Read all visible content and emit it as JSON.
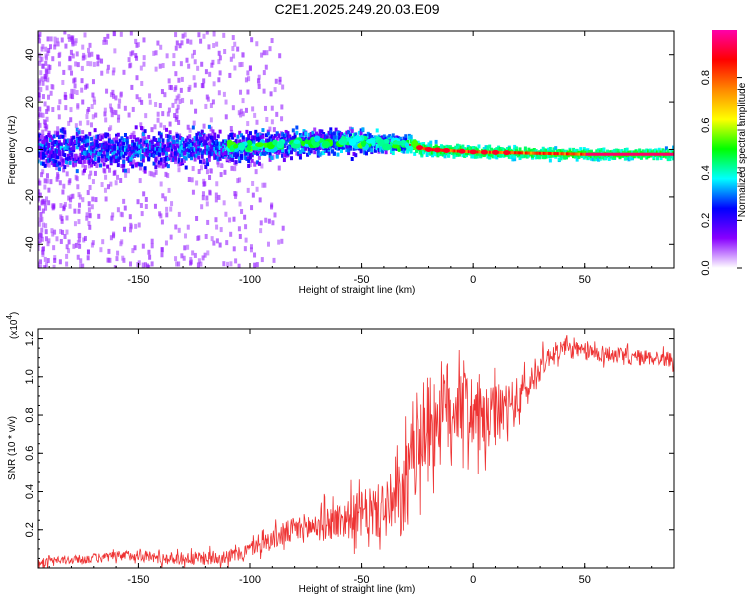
{
  "title": "C2E1.2025.249.20.03.E09",
  "chart_data": [
    {
      "type": "heatmap",
      "xlabel": "Height of straight line (km)",
      "ylabel": "Frequency (Hz)",
      "xlim": [
        -195,
        90
      ],
      "ylim": [
        -50,
        50
      ],
      "xticks": [
        -150,
        -100,
        -50,
        0,
        50
      ],
      "yticks": [
        -40,
        -20,
        0,
        20,
        40
      ],
      "xtick_labels": [
        "-150",
        "-100",
        "-50",
        "0",
        "50"
      ],
      "ytick_labels": [
        "-40",
        "-20",
        "0",
        "20",
        "40"
      ],
      "description_series": {
        "center_frequency_hz": [
          {
            "x": -190,
            "f": 0
          },
          {
            "x": -150,
            "f": 0
          },
          {
            "x": -100,
            "f": 1
          },
          {
            "x": -75,
            "f": 3
          },
          {
            "x": -50,
            "f": 3
          },
          {
            "x": -30,
            "f": 2
          },
          {
            "x": -20,
            "f": 0
          },
          {
            "x": 0,
            "f": -1
          },
          {
            "x": 50,
            "f": -2
          },
          {
            "x": 90,
            "f": -2
          }
        ],
        "band_halfwidth_hz": [
          {
            "x": -190,
            "w": 10
          },
          {
            "x": -100,
            "w": 8
          },
          {
            "x": -50,
            "w": 6
          },
          {
            "x": -30,
            "w": 4
          },
          {
            "x": 0,
            "w": 3
          },
          {
            "x": 90,
            "w": 2.5
          }
        ]
      },
      "colorbar": {
        "label": "Normalized spectral amplitude",
        "range": [
          0,
          1
        ],
        "ticks": [
          0.0,
          0.2,
          0.4,
          0.6,
          0.8
        ],
        "tick_labels": [
          "0.0",
          "0.2",
          "0.4",
          "0.6",
          "0.8"
        ],
        "colormap": [
          "#ffffff",
          "#8800ff",
          "#0000ff",
          "#00ffff",
          "#00ff00",
          "#ffff00",
          "#ff8800",
          "#ff0000",
          "#ff00aa"
        ]
      }
    },
    {
      "type": "line",
      "xlabel": "Height of straight line (km)",
      "ylabel": "SNR (10 * v/v)",
      "scale_label": "(x10",
      "scale_exponent": "4",
      "scale_close": ")",
      "xlim": [
        -195,
        90
      ],
      "ylim": [
        0,
        1.25
      ],
      "xticks": [
        -150,
        -100,
        -50,
        0,
        50
      ],
      "xtick_labels": [
        "-150",
        "-100",
        "-50",
        "0",
        "50"
      ],
      "yticks": [
        0.2,
        0.4,
        0.6,
        0.8,
        1.0,
        1.2
      ],
      "ytick_labels": [
        "0.2",
        "0.4",
        "0.6",
        "0.8",
        "1.0",
        "1.2"
      ],
      "color": "#ee3333",
      "series": [
        {
          "name": "SNR",
          "points": [
            [
              -195,
              0.03
            ],
            [
              -170,
              0.05
            ],
            [
              -150,
              0.07
            ],
            [
              -140,
              0.05
            ],
            [
              -120,
              0.05
            ],
            [
              -105,
              0.07
            ],
            [
              -100,
              0.1
            ],
            [
              -90,
              0.15
            ],
            [
              -80,
              0.2
            ],
            [
              -70,
              0.22
            ],
            [
              -60,
              0.25
            ],
            [
              -50,
              0.28
            ],
            [
              -40,
              0.3
            ],
            [
              -32,
              0.35
            ],
            [
              -28,
              0.5
            ],
            [
              -25,
              0.68
            ],
            [
              -20,
              0.75
            ],
            [
              -15,
              0.8
            ],
            [
              -10,
              0.85
            ],
            [
              -5,
              0.88
            ],
            [
              0,
              0.8
            ],
            [
              5,
              0.75
            ],
            [
              10,
              0.8
            ],
            [
              15,
              0.83
            ],
            [
              20,
              0.88
            ],
            [
              25,
              0.95
            ],
            [
              30,
              1.05
            ],
            [
              35,
              1.12
            ],
            [
              40,
              1.15
            ],
            [
              50,
              1.13
            ],
            [
              60,
              1.12
            ],
            [
              70,
              1.1
            ],
            [
              80,
              1.1
            ],
            [
              90,
              1.09
            ]
          ],
          "noise_amplitude": [
            [
              -195,
              0.02
            ],
            [
              -100,
              0.04
            ],
            [
              -60,
              0.1
            ],
            [
              -40,
              0.15
            ],
            [
              -28,
              0.25
            ],
            [
              -15,
              0.28
            ],
            [
              0,
              0.2
            ],
            [
              20,
              0.12
            ],
            [
              35,
              0.05
            ],
            [
              90,
              0.04
            ]
          ]
        }
      ]
    }
  ]
}
